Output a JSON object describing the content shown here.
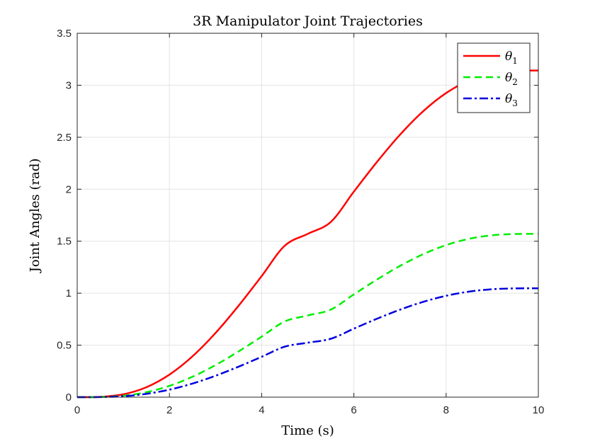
{
  "chart_data": {
    "type": "line",
    "title": "3R Manipulator Joint Trajectories",
    "xlabel": "Time (s)",
    "ylabel": "Joint Angles (rad)",
    "xlim": [
      0,
      10
    ],
    "ylim": [
      0,
      3.5
    ],
    "xticks": [
      0,
      2,
      4,
      6,
      8,
      10
    ],
    "yticks": [
      0,
      0.5,
      1,
      1.5,
      2,
      2.5,
      3,
      3.5
    ],
    "xtick_labels": [
      "0",
      "2",
      "4",
      "6",
      "8",
      "10"
    ],
    "ytick_labels": [
      "0",
      "0.5",
      "1",
      "1.5",
      "2",
      "2.5",
      "3",
      "3.5"
    ],
    "grid": true,
    "legend_position": "top-right",
    "x": [
      0,
      0.5,
      1,
      1.5,
      2,
      2.5,
      3,
      3.5,
      4,
      4.5,
      5,
      5.5,
      6,
      6.5,
      7,
      7.5,
      8,
      8.5,
      9,
      9.5,
      10
    ],
    "series": [
      {
        "name": "θ",
        "subscript": "1",
        "color": "#ff0000",
        "style": "solid",
        "values": [
          0,
          0.0028,
          0.0272,
          0.0953,
          0.2166,
          0.3927,
          0.6174,
          0.8796,
          1.1646,
          1.4563,
          1.5708,
          1.6853,
          1.977,
          2.262,
          2.5242,
          2.7489,
          2.925,
          3.0463,
          3.1144,
          3.1388,
          3.1416
        ]
      },
      {
        "name": "θ",
        "subscript": "2",
        "color": "#00ee00",
        "style": "dashed",
        "values": [
          0,
          0.0014,
          0.0136,
          0.0477,
          0.1083,
          0.1964,
          0.3087,
          0.4398,
          0.5823,
          0.7282,
          0.7854,
          0.8426,
          0.9885,
          1.131,
          1.2621,
          1.3744,
          1.4625,
          1.5231,
          1.5572,
          1.5694,
          1.5708
        ]
      },
      {
        "name": "θ",
        "subscript": "3",
        "color": "#0000dd",
        "style": "dashdot",
        "values": [
          0,
          0.0009,
          0.0091,
          0.0318,
          0.0722,
          0.1309,
          0.2058,
          0.2932,
          0.3882,
          0.4854,
          0.5236,
          0.5618,
          0.659,
          0.754,
          0.8414,
          0.9163,
          0.975,
          1.0154,
          1.0381,
          1.0463,
          1.0472
        ]
      }
    ]
  }
}
